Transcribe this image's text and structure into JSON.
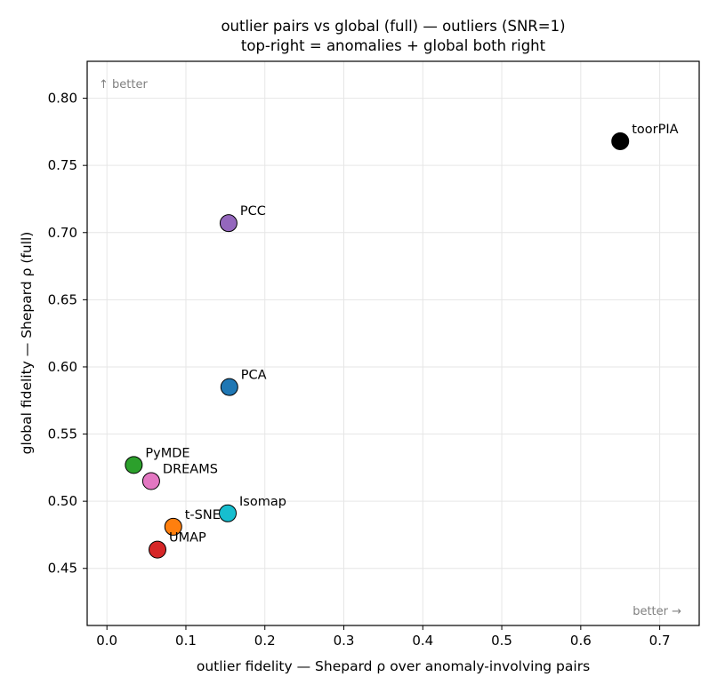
{
  "chart_data": {
    "type": "scatter",
    "title": "outlier pairs vs global (full) — outliers (SNR=1)",
    "subtitle": "top-right = anomalies + global both right",
    "xlabel": "outlier fidelity — Shepard ρ over anomaly-involving pairs",
    "ylabel": "global fidelity — Shepard ρ (full)",
    "xlim": [
      -0.025,
      0.75
    ],
    "ylim": [
      0.4075,
      0.8275
    ],
    "xticks": [
      "0.0",
      "0.1",
      "0.2",
      "0.3",
      "0.4",
      "0.5",
      "0.6",
      "0.7"
    ],
    "yticks": [
      "0.45",
      "0.50",
      "0.55",
      "0.60",
      "0.65",
      "0.70",
      "0.75",
      "0.80"
    ],
    "grid": true,
    "annotations": {
      "top_left": "↑ better",
      "bottom_right": "better →"
    },
    "points": [
      {
        "label": "toorPIA",
        "x": 0.65,
        "y": 0.768,
        "color": "#000000"
      },
      {
        "label": "PCC",
        "x": 0.154,
        "y": 0.707,
        "color": "#9467bd"
      },
      {
        "label": "PCA",
        "x": 0.155,
        "y": 0.585,
        "color": "#1f77b4"
      },
      {
        "label": "PyMDE",
        "x": 0.034,
        "y": 0.527,
        "color": "#2ca02c"
      },
      {
        "label": "DREAMS",
        "x": 0.056,
        "y": 0.515,
        "color": "#e377c2"
      },
      {
        "label": "Isomap",
        "x": 0.153,
        "y": 0.491,
        "color": "#17becf"
      },
      {
        "label": "t-SNE",
        "x": 0.084,
        "y": 0.481,
        "color": "#ff7f0e"
      },
      {
        "label": "UMAP",
        "x": 0.064,
        "y": 0.464,
        "color": "#d62728"
      }
    ]
  }
}
